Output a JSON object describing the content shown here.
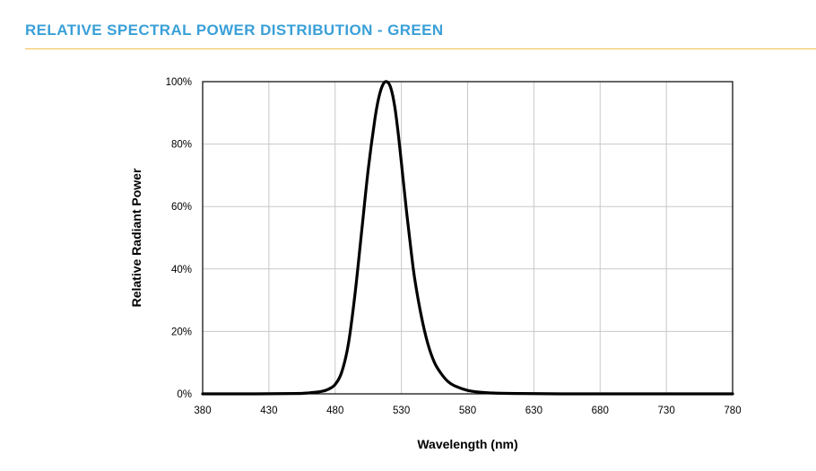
{
  "header": {
    "title": "RELATIVE SPECTRAL POWER DISTRIBUTION - GREEN"
  },
  "colors": {
    "title": "#3aa0d8",
    "rule": "#f2c14e",
    "curve": "#000000",
    "grid": "#c8c8c8"
  },
  "chart_data": {
    "type": "line",
    "title": "",
    "xlabel": "Wavelength (nm)",
    "ylabel": "Relative Radiant Power",
    "xlim": [
      380,
      780
    ],
    "ylim": [
      0,
      100
    ],
    "xticks": [
      "380",
      "430",
      "480",
      "530",
      "580",
      "630",
      "680",
      "730",
      "780"
    ],
    "yticks": [
      "0%",
      "20%",
      "40%",
      "60%",
      "80%",
      "100%"
    ],
    "grid": true,
    "legend": "none",
    "series": [
      {
        "x": [
          380,
          420,
          450,
          460,
          470,
          475,
          480,
          485,
          490,
          495,
          500,
          505,
          510,
          513,
          516,
          519,
          522,
          525,
          528,
          531,
          534,
          537,
          540,
          545,
          550,
          555,
          560,
          565,
          570,
          580,
          590,
          600,
          620,
          650,
          700,
          780
        ],
        "y": [
          0,
          0,
          0.1,
          0.3,
          0.8,
          1.5,
          3,
          7,
          16,
          32,
          52,
          72,
          88,
          95,
          99,
          100,
          98,
          92,
          82,
          70,
          58,
          47,
          37,
          25,
          16,
          10,
          6.5,
          4,
          2.6,
          1.1,
          0.5,
          0.25,
          0.1,
          0,
          0,
          0
        ]
      }
    ]
  }
}
